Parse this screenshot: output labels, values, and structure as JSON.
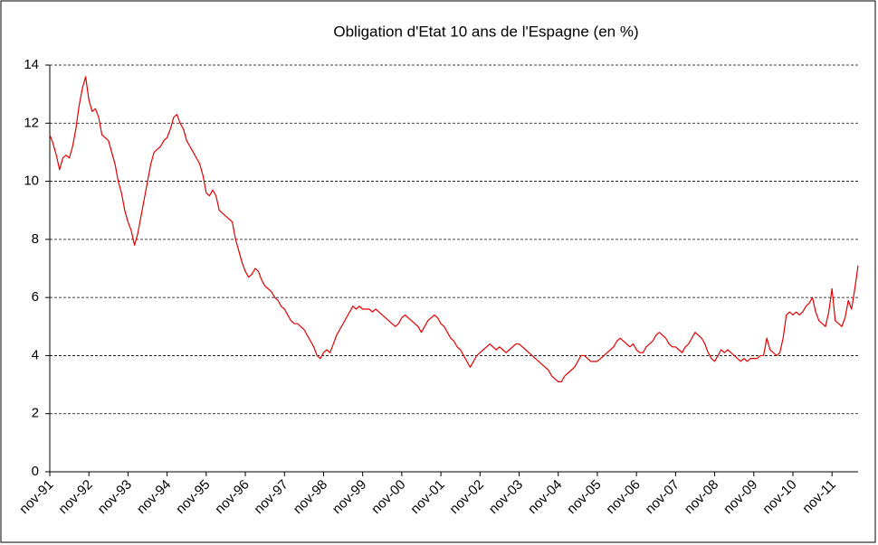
{
  "chart_data": {
    "type": "line",
    "title": "Obligation d'Etat 10 ans de l'Espagne (en %)",
    "categories": [
      "nov-91",
      null,
      null,
      null,
      null,
      null,
      null,
      null,
      null,
      null,
      null,
      null,
      "nov-92",
      null,
      null,
      null,
      null,
      null,
      null,
      null,
      null,
      null,
      null,
      null,
      "nov-93",
      null,
      null,
      null,
      null,
      null,
      null,
      null,
      null,
      null,
      null,
      null,
      "nov-94",
      null,
      null,
      null,
      null,
      null,
      null,
      null,
      null,
      null,
      null,
      null,
      "nov-95",
      null,
      null,
      null,
      null,
      null,
      null,
      null,
      null,
      null,
      null,
      null,
      "nov-96",
      null,
      null,
      null,
      null,
      null,
      null,
      null,
      null,
      null,
      null,
      null,
      "nov-97",
      null,
      null,
      null,
      null,
      null,
      null,
      null,
      null,
      null,
      null,
      null,
      "nov-98",
      null,
      null,
      null,
      null,
      null,
      null,
      null,
      null,
      null,
      null,
      null,
      "nov-99",
      null,
      null,
      null,
      null,
      null,
      null,
      null,
      null,
      null,
      null,
      null,
      "nov-00",
      null,
      null,
      null,
      null,
      null,
      null,
      null,
      null,
      null,
      null,
      null,
      "nov-01",
      null,
      null,
      null,
      null,
      null,
      null,
      null,
      null,
      null,
      null,
      null,
      "nov-02",
      null,
      null,
      null,
      null,
      null,
      null,
      null,
      null,
      null,
      null,
      null,
      "nov-03",
      null,
      null,
      null,
      null,
      null,
      null,
      null,
      null,
      null,
      null,
      null,
      "nov-04",
      null,
      null,
      null,
      null,
      null,
      null,
      null,
      null,
      null,
      null,
      null,
      "nov-05",
      null,
      null,
      null,
      null,
      null,
      null,
      null,
      null,
      null,
      null,
      null,
      "nov-06",
      null,
      null,
      null,
      null,
      null,
      null,
      null,
      null,
      null,
      null,
      null,
      "nov-07",
      null,
      null,
      null,
      null,
      null,
      null,
      null,
      null,
      null,
      null,
      null,
      "nov-08",
      null,
      null,
      null,
      null,
      null,
      null,
      null,
      null,
      null,
      null,
      null,
      "nov-09",
      null,
      null,
      null,
      null,
      null,
      null,
      null,
      null,
      null,
      null,
      null,
      "nov-10",
      null,
      null,
      null,
      null,
      null,
      null,
      null,
      null,
      null,
      null,
      null,
      "nov-11",
      null,
      null,
      null,
      null,
      null,
      null,
      null,
      null
    ],
    "series": [
      {
        "color": "#e00000",
        "values": [
          11.6,
          11.3,
          10.9,
          10.4,
          10.8,
          10.9,
          10.8,
          11.2,
          11.8,
          12.6,
          13.2,
          13.6,
          12.8,
          12.4,
          12.5,
          12.2,
          11.6,
          11.5,
          11.4,
          11.0,
          10.6,
          10.0,
          9.6,
          9.0,
          8.6,
          8.3,
          7.8,
          8.2,
          8.8,
          9.4,
          10.0,
          10.6,
          11.0,
          11.1,
          11.2,
          11.4,
          11.5,
          11.8,
          12.2,
          12.3,
          12.0,
          11.8,
          11.4,
          11.2,
          11.0,
          10.8,
          10.6,
          10.2,
          9.6,
          9.5,
          9.7,
          9.5,
          9.0,
          8.9,
          8.8,
          8.7,
          8.6,
          8.0,
          7.6,
          7.2,
          6.9,
          6.7,
          6.8,
          7.0,
          6.9,
          6.6,
          6.4,
          6.3,
          6.2,
          6.0,
          5.9,
          5.7,
          5.6,
          5.4,
          5.2,
          5.1,
          5.1,
          5.0,
          4.9,
          4.7,
          4.5,
          4.3,
          4.0,
          3.9,
          4.1,
          4.2,
          4.1,
          4.4,
          4.7,
          4.9,
          5.1,
          5.3,
          5.5,
          5.7,
          5.6,
          5.7,
          5.6,
          5.6,
          5.6,
          5.5,
          5.6,
          5.5,
          5.4,
          5.3,
          5.2,
          5.1,
          5.0,
          5.1,
          5.3,
          5.4,
          5.3,
          5.2,
          5.1,
          5.0,
          4.8,
          5.0,
          5.2,
          5.3,
          5.4,
          5.3,
          5.1,
          5.0,
          4.8,
          4.6,
          4.5,
          4.3,
          4.2,
          4.0,
          3.8,
          3.6,
          3.8,
          4.0,
          4.1,
          4.2,
          4.3,
          4.4,
          4.3,
          4.2,
          4.3,
          4.2,
          4.1,
          4.2,
          4.3,
          4.4,
          4.4,
          4.3,
          4.2,
          4.1,
          4.0,
          3.9,
          3.8,
          3.7,
          3.6,
          3.5,
          3.3,
          3.2,
          3.1,
          3.1,
          3.3,
          3.4,
          3.5,
          3.6,
          3.8,
          4.0,
          4.0,
          3.9,
          3.8,
          3.8,
          3.8,
          3.9,
          4.0,
          4.1,
          4.2,
          4.3,
          4.5,
          4.6,
          4.5,
          4.4,
          4.3,
          4.4,
          4.2,
          4.1,
          4.1,
          4.3,
          4.4,
          4.5,
          4.7,
          4.8,
          4.7,
          4.6,
          4.4,
          4.3,
          4.3,
          4.2,
          4.1,
          4.3,
          4.4,
          4.6,
          4.8,
          4.7,
          4.6,
          4.4,
          4.1,
          3.9,
          3.8,
          4.0,
          4.2,
          4.1,
          4.2,
          4.1,
          4.0,
          3.9,
          3.8,
          3.9,
          3.8,
          3.9,
          3.9,
          3.9,
          4.0,
          4.0,
          4.6,
          4.2,
          4.1,
          4.0,
          4.1,
          4.6,
          5.4,
          5.5,
          5.4,
          5.5,
          5.4,
          5.5,
          5.7,
          5.8,
          6.0,
          5.5,
          5.2,
          5.1,
          5.0,
          5.5,
          6.3,
          5.2,
          5.1,
          5.0,
          5.3,
          5.9,
          5.6,
          6.3,
          7.1
        ]
      }
    ],
    "ylim": [
      0,
      14
    ],
    "yticks": [
      0,
      2,
      4,
      6,
      8,
      10,
      12,
      14
    ],
    "grid": true
  }
}
